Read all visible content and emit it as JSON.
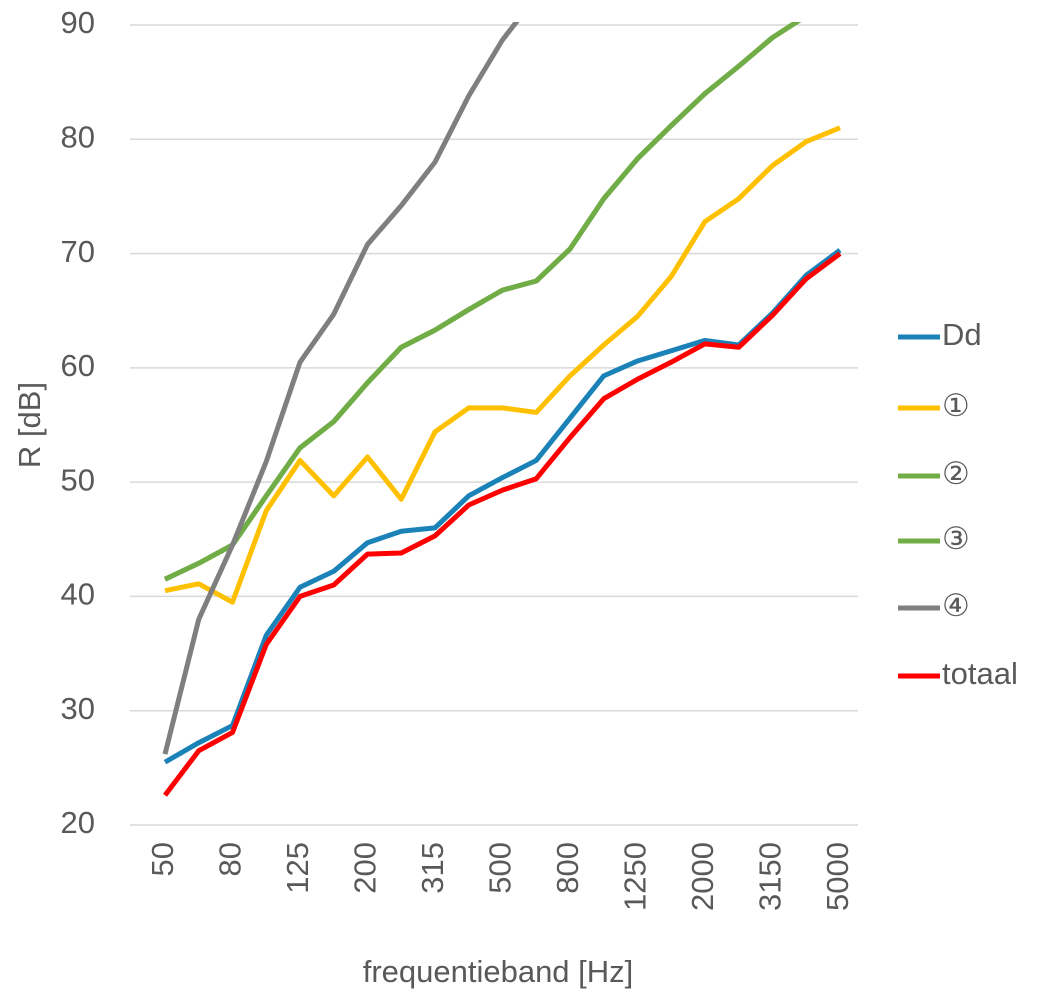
{
  "chart_data": {
    "type": "line",
    "xlabel": "frequentieband [Hz]",
    "ylabel": "R [dB]",
    "categories": [
      "50",
      null,
      "80",
      null,
      "125",
      null,
      "200",
      null,
      "315",
      null,
      "500",
      null,
      "800",
      null,
      "1250",
      null,
      "2000",
      null,
      "3150",
      null,
      "5000"
    ],
    "ylim": [
      20,
      90
    ],
    "yticks": [
      20,
      30,
      40,
      50,
      60,
      70,
      80,
      90
    ],
    "grid": true,
    "legend": "right",
    "series": [
      {
        "name": "Dd",
        "color": "#1b82b8",
        "values": [
          25.5,
          27.2,
          28.7,
          36.6,
          40.8,
          42.2,
          44.7,
          45.7,
          46.0,
          48.8,
          50.4,
          51.9,
          55.6,
          59.3,
          60.6,
          61.5,
          62.4,
          62.0,
          64.8,
          68.1,
          70.3
        ]
      },
      {
        "name": "①",
        "color": "#ffc000",
        "values": [
          40.5,
          41.1,
          39.5,
          47.5,
          51.9,
          48.8,
          52.2,
          48.5,
          54.4,
          56.5,
          56.5,
          56.1,
          59.3,
          62.0,
          64.5,
          68.0,
          72.8,
          74.8,
          77.7,
          79.8,
          81.0
        ]
      },
      {
        "name": "②",
        "color": "#70ad47",
        "values": [
          41.5,
          42.9,
          44.5,
          48.8,
          53.0,
          55.3,
          58.7,
          61.8,
          63.3,
          65.1,
          66.8,
          67.6,
          70.4,
          74.8,
          78.3,
          81.2,
          84.0,
          86.4,
          88.9,
          90.8,
          92.5
        ]
      },
      {
        "name": "③",
        "color": "#70ad47",
        "values": [
          41.5,
          42.9,
          44.5,
          48.8,
          53.0,
          55.3,
          58.7,
          61.8,
          63.3,
          65.1,
          66.8,
          67.6,
          70.4,
          74.8,
          78.3,
          81.2,
          84.0,
          86.4,
          88.9,
          90.8,
          92.5
        ]
      },
      {
        "name": "④",
        "color": "#7f7f7f",
        "values": [
          26.2,
          38.0,
          44.5,
          51.8,
          60.5,
          64.7,
          70.8,
          74.2,
          78.0,
          83.8,
          88.7,
          92.5,
          null,
          null,
          null,
          null,
          null,
          null,
          null,
          null,
          null
        ]
      },
      {
        "name": "totaal",
        "color": "#ff0000",
        "values": [
          22.6,
          26.5,
          28.1,
          35.8,
          40.0,
          41.0,
          43.7,
          43.8,
          45.3,
          48.0,
          49.3,
          50.3,
          53.9,
          57.3,
          59.0,
          60.5,
          62.1,
          61.8,
          64.6,
          67.8,
          70.0
        ]
      }
    ]
  }
}
